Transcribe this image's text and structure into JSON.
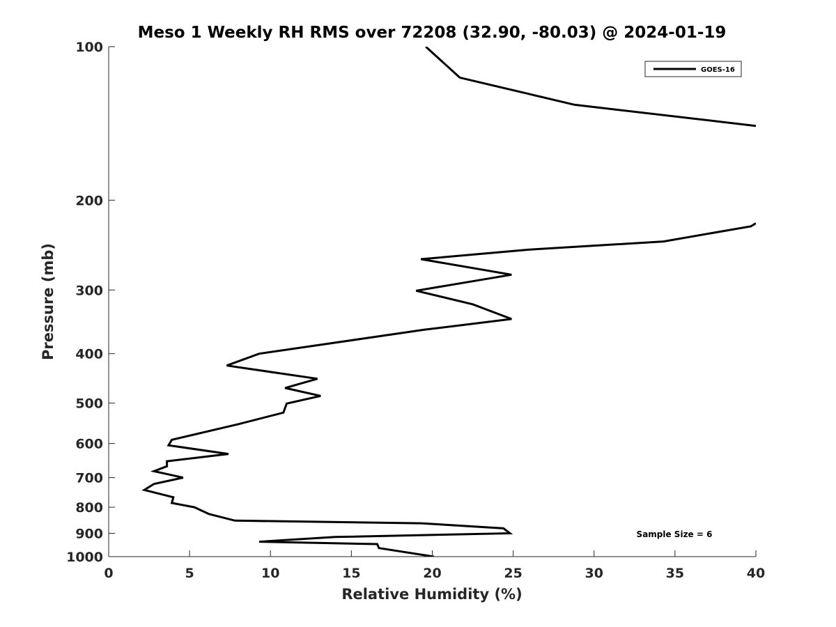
{
  "chart_data": {
    "type": "line",
    "title": "Meso 1 Weekly RH RMS over 72208 (32.90, -80.03) @ 2024-01-19",
    "xlabel": "Relative Humidity (%)",
    "ylabel": "Pressure (mb)",
    "xlim": [
      0,
      40
    ],
    "ylim": [
      100,
      1000
    ],
    "y_scale": "log",
    "y_reversed": true,
    "x_ticks": [
      "0",
      "5",
      "10",
      "15",
      "20",
      "25",
      "30",
      "35",
      "40"
    ],
    "y_ticks": [
      "100",
      "200",
      "300",
      "400",
      "500",
      "600",
      "700",
      "800",
      "900",
      "1000"
    ],
    "grid": false,
    "legend_position": "top-right",
    "annotation": "Sample Size = 6",
    "series": [
      {
        "name": "GOES-16",
        "color": "#000000",
        "points": [
          [
            19.6,
            100
          ],
          [
            21.7,
            115
          ],
          [
            28.8,
            130
          ],
          [
            40.0,
            143
          ],
          null,
          [
            40.0,
            222
          ],
          [
            39.7,
            225
          ],
          [
            34.3,
            241
          ],
          [
            26.0,
            250
          ],
          [
            19.3,
            261
          ],
          [
            24.9,
            280
          ],
          [
            19.0,
            301
          ],
          [
            22.5,
            320
          ],
          [
            24.9,
            342
          ],
          [
            19.5,
            359
          ],
          [
            9.3,
            400
          ],
          [
            7.3,
            422
          ],
          [
            12.9,
            448
          ],
          [
            10.9,
            467
          ],
          [
            13.1,
            484
          ],
          [
            11.0,
            501
          ],
          [
            10.8,
            522
          ],
          [
            8.0,
            550
          ],
          [
            3.9,
            590
          ],
          [
            3.7,
            605
          ],
          [
            7.4,
            629
          ],
          [
            3.6,
            650
          ],
          [
            3.6,
            665
          ],
          [
            2.8,
            680
          ],
          [
            4.6,
            700
          ],
          [
            2.8,
            720
          ],
          [
            2.2,
            740
          ],
          [
            4.0,
            765
          ],
          [
            3.9,
            785
          ],
          [
            5.3,
            800
          ],
          [
            6.2,
            825
          ],
          [
            7.8,
            850
          ],
          [
            19.3,
            860
          ],
          [
            24.4,
            880
          ],
          [
            24.8,
            900
          ],
          [
            14.0,
            915
          ],
          [
            9.3,
            935
          ],
          [
            16.6,
            945
          ],
          [
            16.7,
            962
          ],
          [
            20.1,
            1000
          ]
        ]
      }
    ]
  }
}
